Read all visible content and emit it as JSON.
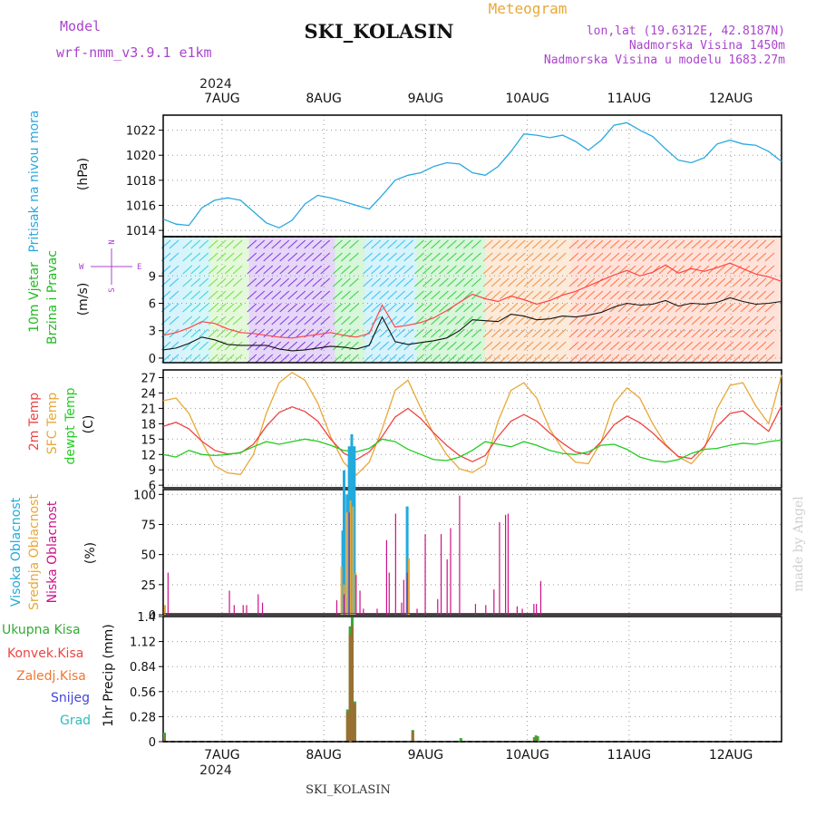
{
  "header": {
    "model_label": "Model",
    "model_value": "wrf-nmm_v3.9.1  e1km",
    "title": "SKI_KOLASIN",
    "meteogram_label": "Meteogram",
    "lonlat": "lon,lat (19.6312E, 42.8187N)",
    "altitude": "Nadmorska Visina 1450m",
    "model_altitude": "Nadmorska Visina u modelu 1683.27m",
    "footer_title": "SKI_KOLASIN",
    "watermark": "made by Angel"
  },
  "colors": {
    "pressure": "#2aa8e0",
    "wind_ylabel": "#22bb22",
    "temp2m": "#ee4444",
    "sfc": "#e8a838",
    "dew": "#22cc22",
    "high_cloud": "#22aadd",
    "mid_cloud": "#e8a838",
    "low_cloud": "#cc1188",
    "total_precip": "#33aa33",
    "conv_precip": "#ee4444",
    "frz_precip": "#ee7733",
    "snow": "#4444dd",
    "hail": "#33bbbb",
    "title_purple": "#aa44cc",
    "meteogram_orange": "#e8a838"
  },
  "chart_data": [
    {
      "id": "pressure",
      "type": "line",
      "ylabel_lines": [
        "Pritisak na nivou mora",
        "(hPa)"
      ],
      "yticks": [
        1014,
        1016,
        1018,
        1020,
        1022
      ],
      "ylim": [
        1013.5,
        1023.2
      ],
      "grid": true,
      "x_day_labels_top": [
        "7AUG",
        "8AUG",
        "9AUG",
        "10AUG",
        "11AUG",
        "12AUG"
      ],
      "year_top": "2024",
      "x_hours": [
        0,
        3,
        6,
        9,
        12,
        15,
        18,
        21,
        24,
        27,
        30,
        33,
        36,
        39,
        42,
        45,
        48,
        51,
        54,
        57,
        60,
        63,
        66,
        69,
        72,
        75,
        78,
        81,
        84,
        87,
        90,
        93,
        96,
        99,
        102,
        105,
        108,
        111,
        114,
        117,
        120,
        123,
        126,
        129,
        132,
        135,
        138,
        141,
        144
      ],
      "series": [
        {
          "name": "Pressure",
          "values": [
            1014.9,
            1014.5,
            1014.4,
            1015.8,
            1016.4,
            1016.6,
            1016.4,
            1015.5,
            1014.6,
            1014.2,
            1014.8,
            1016.1,
            1016.8,
            1016.6,
            1016.3,
            1016.0,
            1015.7,
            1016.8,
            1018.0,
            1018.4,
            1018.6,
            1019.1,
            1019.4,
            1019.3,
            1018.6,
            1018.4,
            1019.1,
            1020.3,
            1021.7,
            1021.6,
            1021.4,
            1021.6,
            1021.1,
            1020.4,
            1021.2,
            1022.4,
            1022.6,
            1022.0,
            1021.5,
            1020.5,
            1019.6,
            1019.4,
            1019.8,
            1020.9,
            1021.2,
            1020.9,
            1020.8,
            1020.3,
            1019.5
          ]
        }
      ]
    },
    {
      "id": "wind",
      "type": "line",
      "ylabel_lines": [
        "10m Vjetar",
        "Brzina i Pravac",
        "(m/s)"
      ],
      "compass": [
        "N",
        "W",
        "E",
        "S"
      ],
      "yticks": [
        0,
        3,
        6,
        9
      ],
      "ylim": [
        -0.5,
        13.3
      ],
      "grid": true,
      "series": [
        {
          "name": "Speed",
          "values": [
            0.9,
            1.1,
            1.6,
            2.3,
            2.0,
            1.5,
            1.4,
            1.4,
            1.4,
            1.0,
            0.8,
            0.9,
            1.1,
            1.3,
            1.2,
            1.0,
            1.4,
            4.5,
            1.8,
            1.5,
            1.7,
            1.9,
            2.2,
            3.0,
            4.2,
            4.1,
            4.0,
            4.8,
            4.6,
            4.2,
            4.3,
            4.6,
            4.5,
            4.7,
            5.0,
            5.6,
            6.0,
            5.8,
            5.9,
            6.3,
            5.7,
            6.0,
            5.9,
            6.1,
            6.6,
            6.2,
            5.9,
            6.0,
            6.2
          ]
        },
        {
          "name": "Gust",
          "values": [
            2.5,
            2.8,
            3.3,
            4.0,
            3.8,
            3.2,
            2.8,
            2.7,
            2.5,
            2.3,
            2.2,
            2.4,
            2.6,
            2.8,
            2.5,
            2.3,
            2.7,
            5.8,
            3.4,
            3.6,
            3.9,
            4.4,
            5.2,
            6.1,
            7.0,
            6.5,
            6.2,
            6.8,
            6.4,
            5.9,
            6.3,
            6.9,
            7.3,
            7.9,
            8.5,
            9.1,
            9.6,
            9.0,
            9.4,
            10.2,
            9.3,
            9.8,
            9.5,
            9.9,
            10.4,
            9.8,
            9.2,
            8.9,
            8.4
          ]
        }
      ]
    },
    {
      "id": "temperature",
      "type": "line",
      "ylabel_lines": [
        "2m Temp",
        "SFC Temp",
        "dewpt Temp",
        "(C)"
      ],
      "yticks": [
        6,
        9,
        12,
        15,
        18,
        21,
        24,
        27
      ],
      "ylim": [
        5.5,
        28.5
      ],
      "grid": true,
      "series": [
        {
          "name": "2m Temp",
          "values": [
            17.5,
            18.3,
            17.0,
            14.6,
            12.8,
            12.1,
            12.3,
            14.0,
            17.5,
            20.2,
            21.3,
            20.4,
            18.5,
            15.0,
            12.3,
            11.0,
            12.5,
            15.5,
            19.3,
            21.0,
            19.0,
            16.2,
            13.8,
            11.8,
            10.6,
            11.8,
            15.5,
            18.5,
            19.8,
            18.5,
            16.2,
            14.2,
            12.5,
            12.0,
            14.5,
            17.8,
            19.5,
            18.2,
            16.2,
            13.8,
            11.6,
            11.2,
            13.5,
            17.5,
            20.0,
            20.5,
            18.5,
            16.5,
            21.5
          ]
        },
        {
          "name": "SFC Temp",
          "values": [
            22.5,
            23.0,
            20.0,
            14.5,
            9.8,
            8.4,
            8.1,
            12.0,
            20.0,
            26.0,
            28.0,
            26.5,
            22.0,
            15.5,
            10.5,
            8.0,
            10.5,
            17.0,
            24.5,
            26.5,
            21.0,
            16.0,
            12.0,
            9.2,
            8.5,
            10.0,
            18.5,
            24.5,
            26.0,
            23.0,
            17.0,
            13.0,
            10.5,
            10.2,
            14.5,
            22.0,
            25.0,
            23.0,
            18.0,
            14.0,
            11.5,
            10.2,
            13.0,
            21.0,
            25.5,
            26.0,
            21.5,
            18.0,
            27.5
          ]
        },
        {
          "name": "Dewpoint",
          "values": [
            12.0,
            11.5,
            12.8,
            12.0,
            11.8,
            12.0,
            12.4,
            13.5,
            14.5,
            14.0,
            14.5,
            15.0,
            14.6,
            13.8,
            12.8,
            12.5,
            13.2,
            15.0,
            14.5,
            13.0,
            12.0,
            11.0,
            10.8,
            11.5,
            12.8,
            14.5,
            14.0,
            13.5,
            14.5,
            13.8,
            12.8,
            12.2,
            12.0,
            12.5,
            13.8,
            14.0,
            13.0,
            11.5,
            10.8,
            10.5,
            11.0,
            12.2,
            13.0,
            13.2,
            13.8,
            14.2,
            14.0,
            14.5,
            14.8
          ]
        }
      ]
    },
    {
      "id": "clouds",
      "type": "bar",
      "ylabel_lines": [
        "Visoka Oblacnost",
        "Srednja Oblacnost",
        "Niska Oblacnost",
        "(%)"
      ],
      "yticks": [
        0,
        25,
        50,
        75,
        100
      ],
      "ylim": [
        0,
        104
      ],
      "grid": true,
      "series": [
        {
          "name": "Visoka Oblacnost",
          "bars": [
            [
              41.5,
              0.7
            ],
            [
              41.8,
              1.2
            ],
            [
              42.5,
              1.0
            ],
            [
              43.0,
              1.4
            ],
            [
              43.6,
              1.5
            ],
            [
              44.2,
              1.4
            ],
            [
              56.5,
              0.9
            ]
          ]
        },
        {
          "name": "Srednja Oblacnost",
          "bars": [
            [
              0.2,
              0.08
            ],
            [
              41.3,
              0.4
            ],
            [
              41.9,
              0.25
            ],
            [
              42.6,
              0.85
            ],
            [
              43.4,
              0.95
            ],
            [
              44.0,
              0.9
            ],
            [
              44.6,
              0.35
            ],
            [
              57.0,
              0.47
            ]
          ]
        },
        {
          "name": "Niska Oblacnost",
          "bars": [
            [
              1.0,
              0.35
            ],
            [
              15.3,
              0.2
            ],
            [
              16.4,
              0.08
            ],
            [
              18.5,
              0.08
            ],
            [
              19.3,
              0.08
            ],
            [
              22.0,
              0.17
            ],
            [
              23.0,
              0.1
            ],
            [
              40.3,
              0.12
            ],
            [
              42.0,
              0.17
            ],
            [
              43.2,
              0.85
            ],
            [
              44.8,
              0.33
            ],
            [
              45.7,
              0.2
            ],
            [
              46.5,
              0.05
            ],
            [
              49.7,
              0.05
            ],
            [
              51.9,
              0.62
            ],
            [
              52.5,
              0.35
            ],
            [
              54.0,
              0.84
            ],
            [
              55.4,
              0.1
            ],
            [
              55.9,
              0.29
            ],
            [
              56.7,
              0.35
            ],
            [
              59.0,
              0.05
            ],
            [
              60.9,
              0.67
            ],
            [
              63.8,
              0.13
            ],
            [
              64.6,
              0.67
            ],
            [
              66.0,
              0.46
            ],
            [
              66.8,
              0.72
            ],
            [
              68.9,
              0.99
            ],
            [
              72.6,
              0.09
            ],
            [
              75.0,
              0.08
            ],
            [
              76.9,
              0.21
            ],
            [
              78.2,
              0.77
            ],
            [
              79.6,
              0.83
            ],
            [
              80.2,
              0.84
            ],
            [
              82.3,
              0.07
            ],
            [
              83.5,
              0.05
            ],
            [
              86.2,
              0.09
            ],
            [
              86.8,
              0.09
            ],
            [
              87.8,
              0.28
            ]
          ]
        }
      ]
    },
    {
      "id": "precip",
      "type": "bar",
      "ylabel_lines": [
        "1hr Precip (mm)"
      ],
      "legend": [
        "Ukupna  Kisa",
        "Konvek.Kisa",
        "Zaledj.Kisa",
        "Snijeg",
        "Grad"
      ],
      "yticks": [
        0,
        0.28,
        0.56,
        0.84,
        1.12,
        1.4
      ],
      "ytick_labels": [
        "0",
        "0.28",
        "0.56",
        "0.84",
        "1.12",
        "1.4"
      ],
      "ylim": [
        0,
        1.4
      ],
      "grid": true,
      "x_day_labels_bottom": [
        "7AUG",
        "8AUG",
        "9AUG",
        "10AUG",
        "11AUG",
        "12AUG"
      ],
      "year_bottom": "2024",
      "series": [
        {
          "name": "Ukupna  Kisa",
          "bars": [
            [
              0.0,
              0.1
            ],
            [
              42.6,
              0.36
            ],
            [
              43.2,
              1.29
            ],
            [
              43.7,
              1.39
            ],
            [
              44.3,
              0.45
            ],
            [
              57.8,
              0.13
            ],
            [
              69.0,
              0.04
            ],
            [
              86.1,
              0.05
            ],
            [
              86.5,
              0.07
            ],
            [
              86.9,
              0.06
            ]
          ]
        },
        {
          "name": "Konvek.Kisa",
          "bars": [
            [
              0.0,
              0.05
            ],
            [
              42.6,
              0.33
            ],
            [
              43.2,
              1.2
            ],
            [
              43.7,
              1.3
            ],
            [
              44.3,
              0.43
            ],
            [
              57.8,
              0.12
            ],
            [
              86.5,
              0.04
            ]
          ]
        }
      ]
    }
  ]
}
